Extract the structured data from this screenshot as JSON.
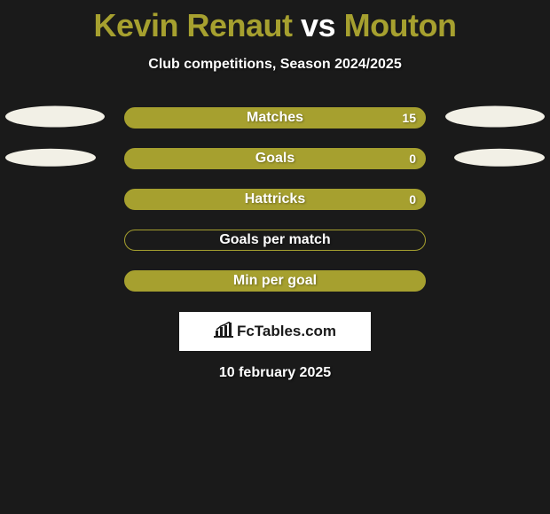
{
  "title": {
    "text": "Kevin Renaut vs Mouton",
    "parts": [
      {
        "text": "Kevin Renaut",
        "color": "#a6a02f"
      },
      {
        "text": " vs ",
        "color": "#ffffff"
      },
      {
        "text": "Mouton",
        "color": "#a6a02f"
      }
    ],
    "fontsize": 36
  },
  "subtitle": "Club competitions, Season 2024/2025",
  "stat_bars": [
    {
      "label": "Matches",
      "value": "15",
      "fill": "#a6a02f",
      "border": "#a6a02f",
      "show_value": true,
      "side_ellipses": "big"
    },
    {
      "label": "Goals",
      "value": "0",
      "fill": "#a6a02f",
      "border": "#a6a02f",
      "show_value": true,
      "side_ellipses": "small"
    },
    {
      "label": "Hattricks",
      "value": "0",
      "fill": "#a6a02f",
      "border": "#a6a02f",
      "show_value": true,
      "side_ellipses": "none"
    },
    {
      "label": "Goals per match",
      "value": "",
      "fill": "transparent",
      "border": "#a6a02f",
      "show_value": false,
      "side_ellipses": "none"
    },
    {
      "label": "Min per goal",
      "value": "",
      "fill": "#a6a02f",
      "border": "#a6a02f",
      "show_value": false,
      "side_ellipses": "none"
    }
  ],
  "ellipse_color": "#f2f0e6",
  "brand": {
    "label": "FcTables.com"
  },
  "date_line": "10 february 2025",
  "background_color": "#1a1a1a"
}
